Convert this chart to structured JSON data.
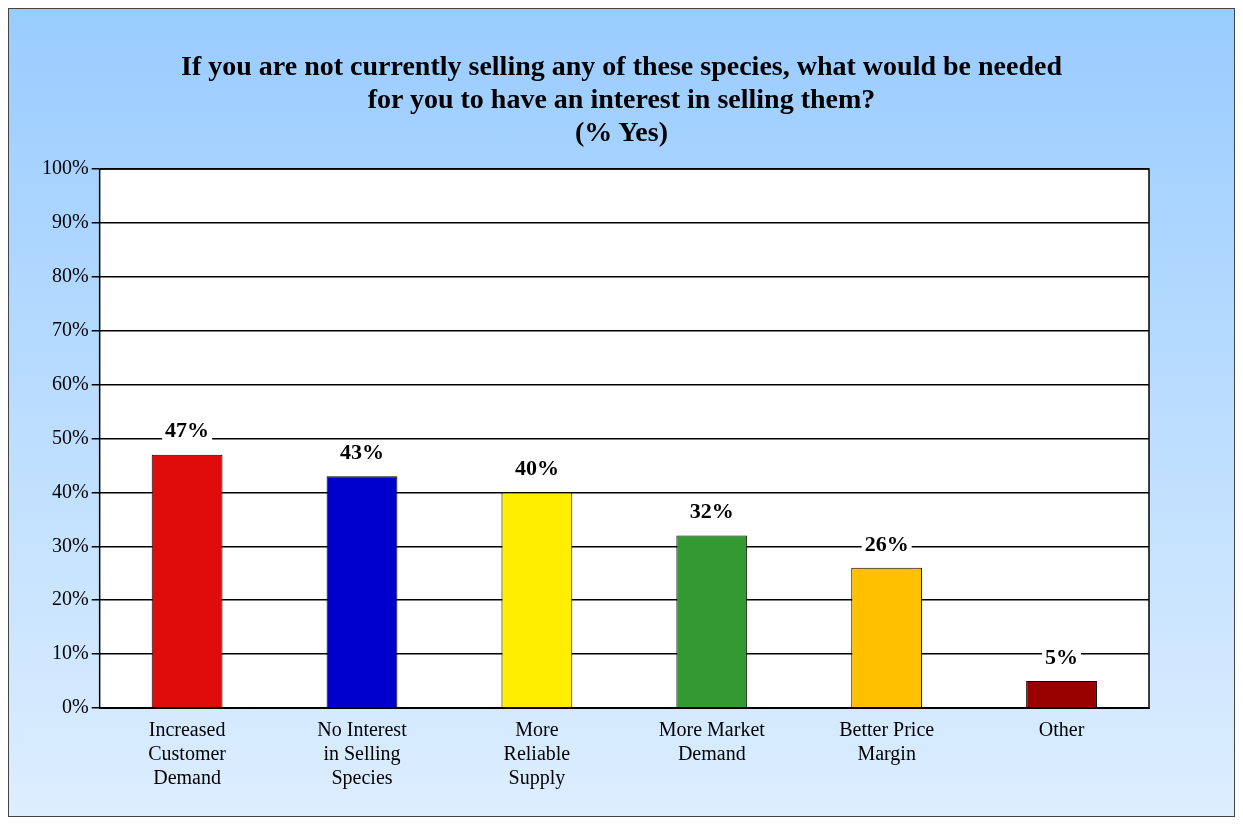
{
  "chart_data": {
    "type": "bar",
    "title": "If you are not currently selling any of these species, what would be needed for you to have an interest in selling them?",
    "subtitle": "(% Yes)",
    "categories": [
      "Increased Customer Demand",
      "No Interest in Selling Species",
      "More Reliable Supply",
      "More Market Demand",
      "Better Price Margin",
      "Other"
    ],
    "values": [
      47,
      43,
      40,
      32,
      26,
      5
    ],
    "colors": [
      "#e00c0c",
      "#0000cc",
      "#ffee00",
      "#339933",
      "#ffc000",
      "#990000"
    ],
    "value_labels": [
      "47%",
      "43%",
      "40%",
      "32%",
      "26%",
      "5%"
    ],
    "ylim": [
      0,
      100
    ],
    "yticks": [
      {
        "value": 0,
        "label": "0%"
      },
      {
        "value": 10,
        "label": "10%"
      },
      {
        "value": 20,
        "label": "20%"
      },
      {
        "value": 30,
        "label": "30%"
      },
      {
        "value": 40,
        "label": "40%"
      },
      {
        "value": 50,
        "label": "50%"
      },
      {
        "value": 60,
        "label": "60%"
      },
      {
        "value": 70,
        "label": "70%"
      },
      {
        "value": 80,
        "label": "80%"
      },
      {
        "value": 90,
        "label": "90%"
      },
      {
        "value": 100,
        "label": "100%"
      }
    ],
    "grid": "y",
    "legend": false
  }
}
